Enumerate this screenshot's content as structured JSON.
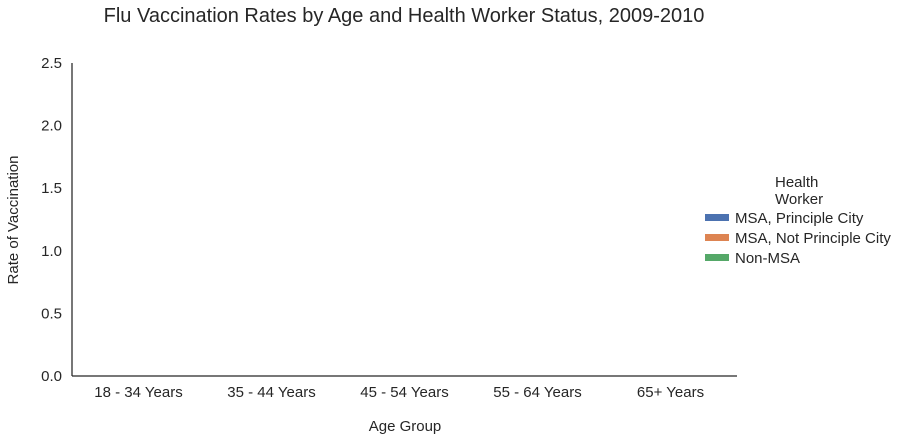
{
  "chart_data": {
    "type": "bar",
    "title": "Flu Vaccination Rates by Age and Health Worker Status, 2009-2010",
    "xlabel": "Age Group",
    "ylabel": "Rate of Vaccination",
    "categories": [
      "18 - 34 Years",
      "35 - 44 Years",
      "45 - 54 Years",
      "55 - 64 Years",
      "65+ Years"
    ],
    "ylim": [
      0,
      2.5
    ],
    "yticks": [
      "0.0",
      "0.5",
      "1.0",
      "1.5",
      "2.0",
      "2.5"
    ],
    "grid": false,
    "legend": {
      "title_lines": [
        "Health",
        "Worker"
      ],
      "placement": "right"
    },
    "series": [
      {
        "name": "MSA, Principle City",
        "color": "#4c72b0",
        "values": [
          0,
          0,
          0,
          0,
          0
        ]
      },
      {
        "name": "MSA, Not Principle  City",
        "color": "#dd8452",
        "values": [
          0,
          0,
          0,
          0,
          0
        ]
      },
      {
        "name": "Non-MSA",
        "color": "#55a868",
        "values": [
          0,
          0,
          0,
          0,
          0
        ]
      }
    ]
  }
}
